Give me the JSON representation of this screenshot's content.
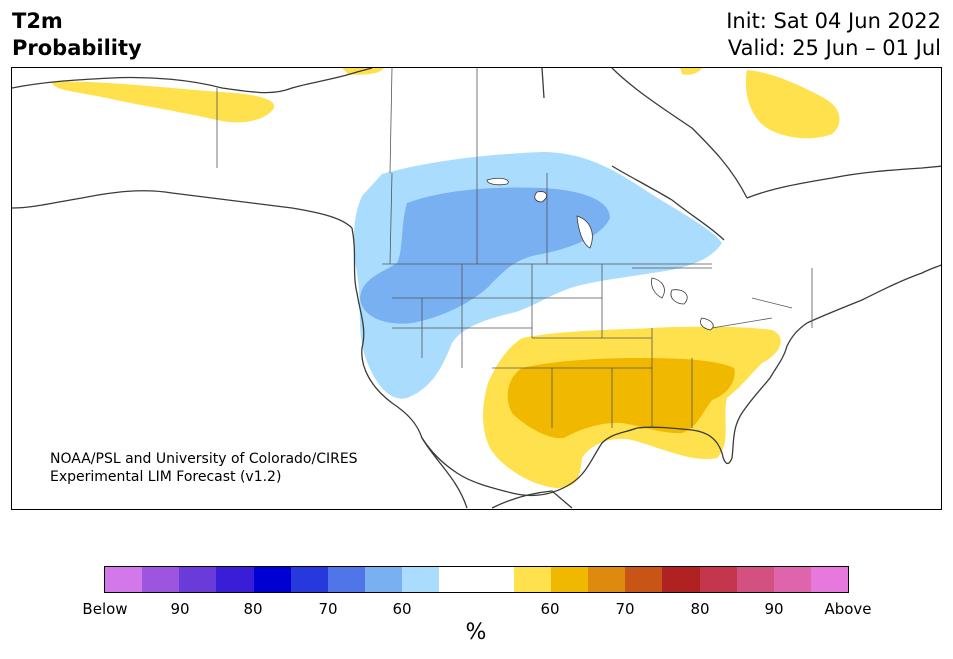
{
  "header": {
    "variable": "T2m",
    "subtitle": "Probability",
    "init": "Init: Sat 04 Jun 2022",
    "valid": "Valid: 25 Jun – 01 Jul"
  },
  "map": {
    "credit_line1": "NOAA/PSL and University of Colorado/CIRES",
    "credit_line2": "Experimental LIM Forecast (v1.2)",
    "region": "North America"
  },
  "colorbar": {
    "colors": [
      "#d378eb",
      "#9d55e0",
      "#6a3bd9",
      "#3a1dd6",
      "#0000d2",
      "#2738dc",
      "#5075e8",
      "#78b0f2",
      "#aadcfd",
      "#ffffff",
      "#ffffff",
      "#ffe14d",
      "#f1b800",
      "#de8a0e",
      "#c85415",
      "#b02121",
      "#c4364d",
      "#d25180",
      "#de64ac",
      "#e679db"
    ],
    "labels": [
      "Below",
      "90",
      "80",
      "70",
      "60",
      "60",
      "70",
      "80",
      "90",
      "Above"
    ],
    "unit": "%"
  },
  "colors": {
    "below_light": "#aadcfd",
    "below_medium": "#78b0f2",
    "above_light": "#ffe14d",
    "above_medium": "#f1b800"
  }
}
